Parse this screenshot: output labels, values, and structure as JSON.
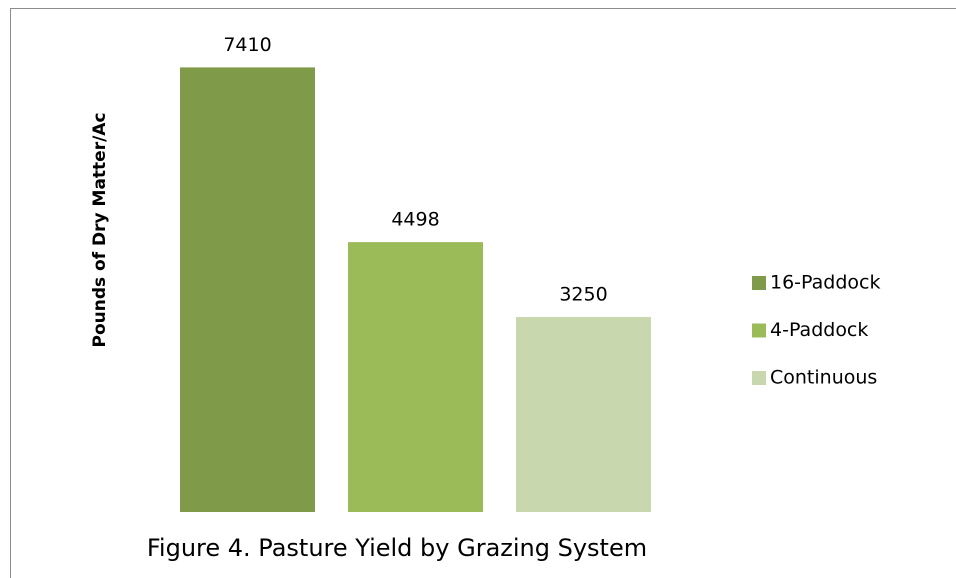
{
  "chart_data": {
    "type": "bar",
    "title": "Figure 4.  Pasture Yield by Grazing System",
    "y_label": "Pounds of Dry Matter/Ac",
    "categories": [
      null
    ],
    "series": [
      {
        "name": "16-Paddock",
        "color": "#7f9a48",
        "values": [
          7410
        ]
      },
      {
        "name": "4-Paddock",
        "color": "#9bbb59",
        "values": [
          4498
        ]
      },
      {
        "name": "Continuous",
        "color": "#c8d7ad",
        "values": [
          3250
        ]
      }
    ],
    "ylim": [
      0,
      8000
    ],
    "legend": "right"
  }
}
